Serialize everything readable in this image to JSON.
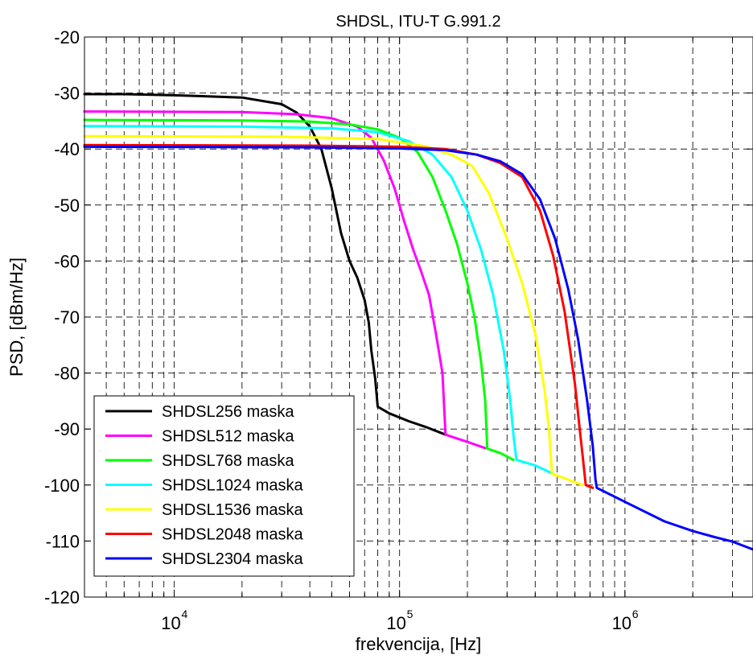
{
  "chart_data": {
    "type": "line",
    "title": "SHDSL, ITU-T G.991.2",
    "xlabel": "frekvencija, [Hz]",
    "ylabel": "PSD, [dBm/Hz]",
    "xscale": "log",
    "xlim": [
      4000,
      3700000
    ],
    "ylim": [
      -120,
      -20
    ],
    "yticks": [
      -20,
      -30,
      -40,
      -50,
      -60,
      -70,
      -80,
      -90,
      -100,
      -110,
      -120
    ],
    "yticklabels": [
      "-20",
      "-30",
      "-40",
      "-50",
      "-60",
      "-70",
      "-80",
      "-90",
      "-100",
      "-110",
      "-120"
    ],
    "xticks": [
      10000,
      100000,
      1000000
    ],
    "xticklabels": [
      {
        "base": "10",
        "exp": "4"
      },
      {
        "base": "10",
        "exp": "5"
      },
      {
        "base": "10",
        "exp": "6"
      }
    ],
    "grid": true,
    "grid_style": "dashed",
    "legend_position": "lower-left",
    "series": [
      {
        "name": "SHDSL256 maska",
        "color": "#000000",
        "x": [
          4000,
          6000,
          10000,
          20000,
          30000,
          35000,
          40000,
          45000,
          50000,
          55000,
          60000,
          65000,
          70000,
          73000,
          75000,
          78000,
          80000,
          90000,
          110000,
          130000,
          160000
        ],
        "y": [
          -30.2,
          -30.2,
          -30.4,
          -30.8,
          -32.0,
          -33.5,
          -36.0,
          -40.0,
          -47.0,
          -55.0,
          -60.0,
          -63.0,
          -67.0,
          -71.0,
          -76.0,
          -81.0,
          -86.0,
          -87.2,
          -88.6,
          -89.6,
          -91.0
        ]
      },
      {
        "name": "SHDSL512 maska",
        "color": "#ff00ff",
        "x": [
          4000,
          20000,
          35000,
          50000,
          65000,
          75000,
          85000,
          95000,
          105000,
          115000,
          125000,
          135000,
          145000,
          155000,
          160000,
          200000,
          240000
        ],
        "y": [
          -33.3,
          -33.4,
          -33.8,
          -34.5,
          -36.0,
          -38.0,
          -42.0,
          -47.0,
          -53.0,
          -58.0,
          -62.0,
          -66.0,
          -73.0,
          -80.0,
          -91.0,
          -92.3,
          -93.4
        ]
      },
      {
        "name": "SHDSL768 maska",
        "color": "#00ff00",
        "x": [
          4000,
          20000,
          40000,
          60000,
          80000,
          100000,
          120000,
          140000,
          160000,
          180000,
          200000,
          215000,
          230000,
          240000,
          245000,
          280000,
          320000
        ],
        "y": [
          -34.8,
          -34.9,
          -35.1,
          -35.6,
          -36.5,
          -38.0,
          -40.5,
          -45.0,
          -51.0,
          -57.0,
          -64.0,
          -70.0,
          -78.0,
          -85.0,
          -93.5,
          -94.3,
          -95.5
        ]
      },
      {
        "name": "SHDSL1024 maska",
        "color": "#00ffff",
        "x": [
          4000,
          20000,
          50000,
          80000,
          110000,
          140000,
          170000,
          200000,
          230000,
          260000,
          290000,
          310000,
          320000,
          330000,
          400000,
          480000
        ],
        "y": [
          -35.9,
          -36.0,
          -36.3,
          -37.0,
          -38.6,
          -41.0,
          -45.0,
          -51.0,
          -58.0,
          -66.0,
          -76.0,
          -85.0,
          -91.0,
          -95.5,
          -96.5,
          -98.0
        ]
      },
      {
        "name": "SHDSL1536 maska",
        "color": "#ffff00",
        "x": [
          4000,
          30000,
          80000,
          130000,
          170000,
          210000,
          250000,
          300000,
          350000,
          400000,
          440000,
          460000,
          475000,
          550000,
          650000
        ],
        "y": [
          -37.7,
          -37.8,
          -38.2,
          -39.5,
          -41.0,
          -43.0,
          -48.0,
          -56.0,
          -64.0,
          -73.0,
          -83.0,
          -90.0,
          -98.0,
          -98.9,
          -100.0
        ]
      },
      {
        "name": "SHDSL2048 maska",
        "color": "#ff0000",
        "x": [
          4000,
          40000,
          100000,
          160000,
          220000,
          280000,
          350000,
          420000,
          480000,
          540000,
          600000,
          630000,
          650000,
          670000,
          720000
        ],
        "y": [
          -39.3,
          -39.4,
          -39.6,
          -40.0,
          -41.0,
          -42.5,
          -45.0,
          -51.0,
          -59.0,
          -69.0,
          -82.0,
          -90.0,
          -95.0,
          -100.0,
          -100.5
        ]
      },
      {
        "name": "SHDSL2304 maska",
        "color": "#0000ff",
        "x": [
          4000,
          40000,
          100000,
          160000,
          220000,
          280000,
          350000,
          420000,
          490000,
          560000,
          620000,
          680000,
          720000,
          740000,
          750000,
          1000000,
          1500000,
          2000000,
          2500000,
          3000000,
          3700000
        ],
        "y": [
          -39.6,
          -39.7,
          -39.9,
          -40.2,
          -41.0,
          -42.2,
          -44.5,
          -49.0,
          -56.0,
          -65.0,
          -74.0,
          -85.0,
          -93.0,
          -99.0,
          -100.5,
          -103.0,
          -106.5,
          -108.2,
          -109.3,
          -110.1,
          -111.5
        ]
      }
    ]
  }
}
